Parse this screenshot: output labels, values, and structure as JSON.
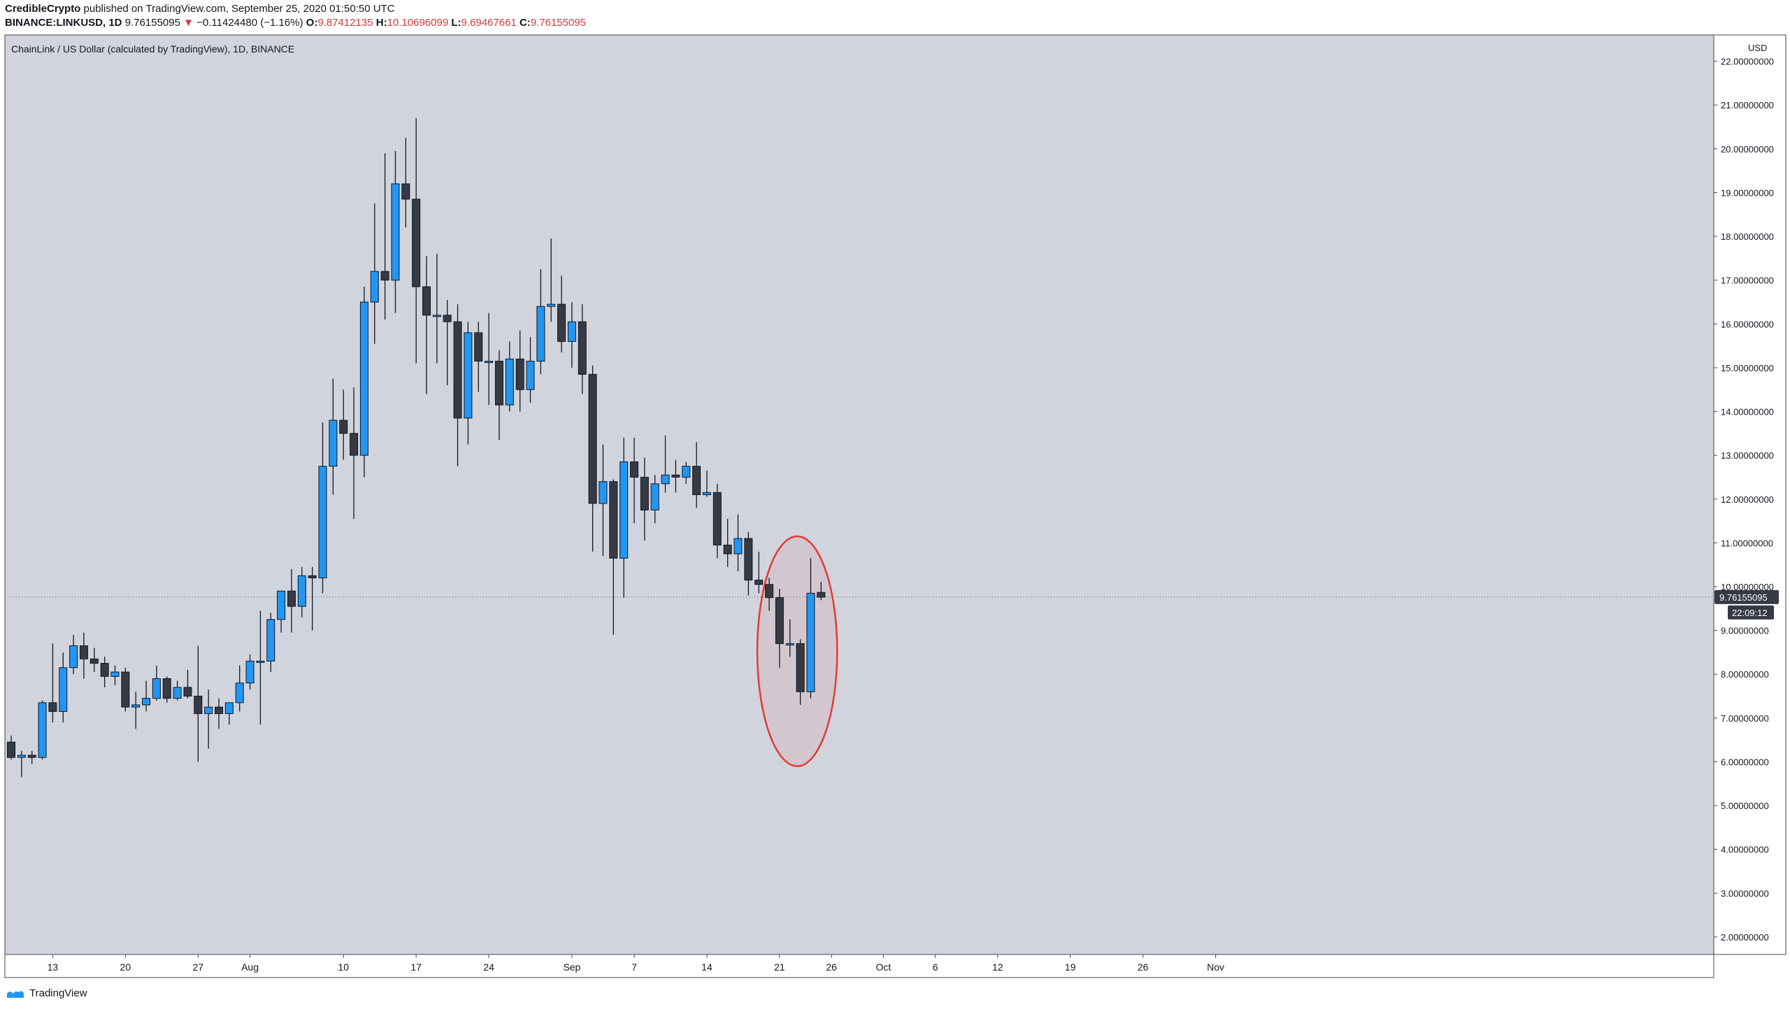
{
  "header": {
    "author": "CredibleCrypto",
    "published": "published on TradingView.com, September 25, 2020 01:50:50 UTC",
    "symbol": "BINANCE:LINKUSD, 1D",
    "last": "9.76155095",
    "change_arrow": "▼",
    "change": "−0.11424480 (−1.16%)",
    "o_label": "O:",
    "o_value": "9.87412135",
    "h_label": "H:",
    "h_value": "10.10696099",
    "l_label": "L:",
    "l_value": "9.69467661",
    "c_label": "C:",
    "c_value": "9.76155095"
  },
  "footer": {
    "brand": "TradingView"
  },
  "colors": {
    "up": "#2196f3",
    "down": "#363a45",
    "pane_bg": "#d1d4dc",
    "circle": "#e53935"
  },
  "chart_data": {
    "type": "candlestick",
    "title": "ChainLink / US Dollar (calculated by TradingView), 1D, BINANCE",
    "currency_label": "USD",
    "ylim": [
      1.6,
      22.6
    ],
    "y_ticks": [
      2,
      3,
      4,
      5,
      6,
      7,
      8,
      9,
      10,
      11,
      12,
      13,
      14,
      15,
      16,
      17,
      18,
      19,
      20,
      21,
      22
    ],
    "y_tick_format_decimals": 8,
    "x_ticks": [
      "13",
      "20",
      "27",
      "Aug",
      "10",
      "17",
      "24",
      "Sep",
      "7",
      "14",
      "21",
      "26",
      "Oct",
      "6",
      "12",
      "19",
      "26",
      "Nov"
    ],
    "last_price_label": "9.76155095",
    "countdown_label": "22:09:12",
    "last_price": 9.76155095,
    "grid": false,
    "candles": [
      {
        "date": "2020-07-09",
        "o": 6.45,
        "h": 6.6,
        "l": 6.05,
        "c": 6.1
      },
      {
        "date": "2020-07-10",
        "o": 6.1,
        "h": 6.25,
        "l": 5.65,
        "c": 6.15
      },
      {
        "date": "2020-07-11",
        "o": 6.15,
        "h": 6.25,
        "l": 5.95,
        "c": 6.1
      },
      {
        "date": "2020-07-12",
        "o": 6.1,
        "h": 7.4,
        "l": 6.05,
        "c": 7.35
      },
      {
        "date": "2020-07-13",
        "o": 7.35,
        "h": 8.7,
        "l": 6.9,
        "c": 7.15
      },
      {
        "date": "2020-07-14",
        "o": 7.15,
        "h": 8.5,
        "l": 6.9,
        "c": 8.15
      },
      {
        "date": "2020-07-15",
        "o": 8.15,
        "h": 8.9,
        "l": 8.0,
        "c": 8.65
      },
      {
        "date": "2020-07-16",
        "o": 8.65,
        "h": 8.95,
        "l": 7.9,
        "c": 8.35
      },
      {
        "date": "2020-07-17",
        "o": 8.35,
        "h": 8.6,
        "l": 8.05,
        "c": 8.25
      },
      {
        "date": "2020-07-18",
        "o": 8.25,
        "h": 8.4,
        "l": 7.7,
        "c": 7.95
      },
      {
        "date": "2020-07-19",
        "o": 7.95,
        "h": 8.2,
        "l": 7.75,
        "c": 8.05
      },
      {
        "date": "2020-07-20",
        "o": 8.05,
        "h": 8.15,
        "l": 7.15,
        "c": 7.25
      },
      {
        "date": "2020-07-21",
        "o": 7.25,
        "h": 7.6,
        "l": 6.75,
        "c": 7.3
      },
      {
        "date": "2020-07-22",
        "o": 7.3,
        "h": 7.85,
        "l": 7.15,
        "c": 7.45
      },
      {
        "date": "2020-07-23",
        "o": 7.45,
        "h": 8.2,
        "l": 7.4,
        "c": 7.9
      },
      {
        "date": "2020-07-24",
        "o": 7.9,
        "h": 7.95,
        "l": 7.35,
        "c": 7.45
      },
      {
        "date": "2020-07-25",
        "o": 7.45,
        "h": 7.85,
        "l": 7.4,
        "c": 7.7
      },
      {
        "date": "2020-07-26",
        "o": 7.7,
        "h": 8.1,
        "l": 7.45,
        "c": 7.5
      },
      {
        "date": "2020-07-27",
        "o": 7.5,
        "h": 8.65,
        "l": 6.0,
        "c": 7.1
      },
      {
        "date": "2020-07-28",
        "o": 7.1,
        "h": 7.65,
        "l": 6.3,
        "c": 7.25
      },
      {
        "date": "2020-07-29",
        "o": 7.25,
        "h": 7.45,
        "l": 6.75,
        "c": 7.1
      },
      {
        "date": "2020-07-30",
        "o": 7.1,
        "h": 7.35,
        "l": 6.85,
        "c": 7.35
      },
      {
        "date": "2020-07-31",
        "o": 7.35,
        "h": 8.2,
        "l": 7.15,
        "c": 7.8
      },
      {
        "date": "2020-08-01",
        "o": 7.8,
        "h": 8.45,
        "l": 7.65,
        "c": 8.3
      },
      {
        "date": "2020-08-02",
        "o": 8.3,
        "h": 9.45,
        "l": 6.85,
        "c": 8.3
      },
      {
        "date": "2020-08-03",
        "o": 8.3,
        "h": 9.4,
        "l": 8.05,
        "c": 9.25
      },
      {
        "date": "2020-08-04",
        "o": 9.25,
        "h": 9.85,
        "l": 8.95,
        "c": 9.9
      },
      {
        "date": "2020-08-05",
        "o": 9.9,
        "h": 10.4,
        "l": 8.95,
        "c": 9.55
      },
      {
        "date": "2020-08-06",
        "o": 9.55,
        "h": 10.45,
        "l": 9.3,
        "c": 10.25
      },
      {
        "date": "2020-08-07",
        "o": 10.25,
        "h": 10.45,
        "l": 9.0,
        "c": 10.2
      },
      {
        "date": "2020-08-08",
        "o": 10.2,
        "h": 13.75,
        "l": 9.85,
        "c": 12.75
      },
      {
        "date": "2020-08-09",
        "o": 12.75,
        "h": 14.75,
        "l": 12.1,
        "c": 13.8
      },
      {
        "date": "2020-08-10",
        "o": 13.8,
        "h": 14.5,
        "l": 12.9,
        "c": 13.5
      },
      {
        "date": "2020-08-11",
        "o": 13.5,
        "h": 14.55,
        "l": 11.55,
        "c": 13.0
      },
      {
        "date": "2020-08-12",
        "o": 13.0,
        "h": 16.85,
        "l": 12.5,
        "c": 16.5
      },
      {
        "date": "2020-08-13",
        "o": 16.5,
        "h": 18.75,
        "l": 15.55,
        "c": 17.2
      },
      {
        "date": "2020-08-14",
        "o": 17.2,
        "h": 19.9,
        "l": 16.1,
        "c": 17.0
      },
      {
        "date": "2020-08-15",
        "o": 17.0,
        "h": 19.95,
        "l": 16.25,
        "c": 19.2
      },
      {
        "date": "2020-08-16",
        "o": 19.2,
        "h": 20.25,
        "l": 18.2,
        "c": 18.85
      },
      {
        "date": "2020-08-17",
        "o": 18.85,
        "h": 20.7,
        "l": 15.1,
        "c": 16.85
      },
      {
        "date": "2020-08-18",
        "o": 16.85,
        "h": 17.55,
        "l": 14.4,
        "c": 16.2
      },
      {
        "date": "2020-08-19",
        "o": 16.2,
        "h": 17.6,
        "l": 15.1,
        "c": 16.2
      },
      {
        "date": "2020-08-20",
        "o": 16.2,
        "h": 16.55,
        "l": 14.6,
        "c": 16.05
      },
      {
        "date": "2020-08-21",
        "o": 16.05,
        "h": 16.45,
        "l": 12.75,
        "c": 13.85
      },
      {
        "date": "2020-08-22",
        "o": 13.85,
        "h": 16.05,
        "l": 13.25,
        "c": 15.8
      },
      {
        "date": "2020-08-23",
        "o": 15.8,
        "h": 16.05,
        "l": 14.45,
        "c": 15.15
      },
      {
        "date": "2020-08-24",
        "o": 15.15,
        "h": 16.25,
        "l": 14.15,
        "c": 15.15
      },
      {
        "date": "2020-08-25",
        "o": 15.15,
        "h": 15.4,
        "l": 13.35,
        "c": 14.15
      },
      {
        "date": "2020-08-26",
        "o": 14.15,
        "h": 15.6,
        "l": 14.0,
        "c": 15.2
      },
      {
        "date": "2020-08-27",
        "o": 15.2,
        "h": 15.85,
        "l": 14.0,
        "c": 14.5
      },
      {
        "date": "2020-08-28",
        "o": 14.5,
        "h": 15.7,
        "l": 14.2,
        "c": 15.15
      },
      {
        "date": "2020-08-29",
        "o": 15.15,
        "h": 17.25,
        "l": 14.85,
        "c": 16.4
      },
      {
        "date": "2020-08-30",
        "o": 16.4,
        "h": 17.95,
        "l": 16.05,
        "c": 16.45
      },
      {
        "date": "2020-08-31",
        "o": 16.45,
        "h": 17.1,
        "l": 15.35,
        "c": 15.6
      },
      {
        "date": "2020-09-01",
        "o": 15.6,
        "h": 16.5,
        "l": 15.0,
        "c": 16.05
      },
      {
        "date": "2020-09-02",
        "o": 16.05,
        "h": 16.45,
        "l": 14.4,
        "c": 14.85
      },
      {
        "date": "2020-09-03",
        "o": 14.85,
        "h": 15.05,
        "l": 10.8,
        "c": 11.9
      },
      {
        "date": "2020-09-04",
        "o": 11.9,
        "h": 13.25,
        "l": 10.7,
        "c": 12.4
      },
      {
        "date": "2020-09-05",
        "o": 12.4,
        "h": 12.45,
        "l": 8.9,
        "c": 10.65
      },
      {
        "date": "2020-09-06",
        "o": 10.65,
        "h": 13.4,
        "l": 9.75,
        "c": 12.85
      },
      {
        "date": "2020-09-07",
        "o": 12.85,
        "h": 13.4,
        "l": 11.45,
        "c": 12.5
      },
      {
        "date": "2020-09-08",
        "o": 12.5,
        "h": 12.95,
        "l": 11.05,
        "c": 11.75
      },
      {
        "date": "2020-09-09",
        "o": 11.75,
        "h": 12.55,
        "l": 11.45,
        "c": 12.35
      },
      {
        "date": "2020-09-10",
        "o": 12.35,
        "h": 13.45,
        "l": 12.15,
        "c": 12.55
      },
      {
        "date": "2020-09-11",
        "o": 12.55,
        "h": 12.9,
        "l": 12.15,
        "c": 12.5
      },
      {
        "date": "2020-09-12",
        "o": 12.5,
        "h": 12.85,
        "l": 12.35,
        "c": 12.75
      },
      {
        "date": "2020-09-13",
        "o": 12.75,
        "h": 13.3,
        "l": 11.8,
        "c": 12.1
      },
      {
        "date": "2020-09-14",
        "o": 12.1,
        "h": 12.65,
        "l": 12.05,
        "c": 12.15
      },
      {
        "date": "2020-09-15",
        "o": 12.15,
        "h": 12.35,
        "l": 10.65,
        "c": 10.95
      },
      {
        "date": "2020-09-16",
        "o": 10.95,
        "h": 11.55,
        "l": 10.45,
        "c": 10.75
      },
      {
        "date": "2020-09-17",
        "o": 10.75,
        "h": 11.65,
        "l": 10.35,
        "c": 11.1
      },
      {
        "date": "2020-09-18",
        "o": 11.1,
        "h": 11.25,
        "l": 9.8,
        "c": 10.15
      },
      {
        "date": "2020-09-19",
        "o": 10.15,
        "h": 10.8,
        "l": 9.85,
        "c": 10.05
      },
      {
        "date": "2020-09-20",
        "o": 10.05,
        "h": 10.2,
        "l": 9.45,
        "c": 9.75
      },
      {
        "date": "2020-09-21",
        "o": 9.75,
        "h": 9.95,
        "l": 8.15,
        "c": 8.7
      },
      {
        "date": "2020-09-22",
        "o": 8.7,
        "h": 9.25,
        "l": 8.4,
        "c": 8.7
      },
      {
        "date": "2020-09-23",
        "o": 8.7,
        "h": 8.8,
        "l": 7.3,
        "c": 7.6
      },
      {
        "date": "2020-09-24",
        "o": 7.6,
        "h": 10.65,
        "l": 7.45,
        "c": 9.85
      },
      {
        "date": "2020-09-25",
        "o": 9.87,
        "h": 10.11,
        "l": 9.69,
        "c": 9.76
      }
    ],
    "annotation": {
      "type": "ellipse",
      "around_dates": [
        "2020-09-20",
        "2020-09-25"
      ],
      "y_range": [
        5.9,
        11.15
      ]
    }
  }
}
